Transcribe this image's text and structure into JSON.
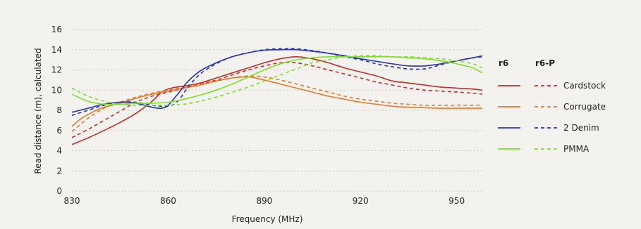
{
  "chart_data": {
    "type": "line",
    "xlabel": "Frequency (MHz)",
    "ylabel": "Read distance (m), calculated",
    "xlim": [
      830,
      958
    ],
    "ylim": [
      0,
      16
    ],
    "x_ticks": [
      830,
      860,
      890,
      920,
      950
    ],
    "y_ticks": [
      0,
      2,
      4,
      6,
      8,
      10,
      12,
      14,
      16
    ],
    "grid": "horizontal",
    "legend": {
      "placement": "right",
      "columns": [
        "r6",
        "r6-P"
      ],
      "styles": [
        "solid",
        "dashed"
      ]
    },
    "series": [
      {
        "name": "Cardstock",
        "color": "#c0302b",
        "r6": {
          "x": [
            830,
            833,
            836,
            840,
            845,
            850,
            855,
            858,
            861,
            865,
            870,
            875,
            880,
            885,
            890,
            895,
            900,
            905,
            910,
            915,
            920,
            925,
            930,
            935,
            940,
            945,
            950,
            955,
            958
          ],
          "y": [
            4.6,
            5.0,
            5.4,
            6.0,
            6.8,
            7.7,
            8.9,
            9.8,
            10.2,
            10.4,
            10.7,
            11.2,
            11.7,
            12.2,
            12.7,
            13.1,
            13.3,
            13.1,
            12.7,
            12.2,
            11.8,
            11.4,
            10.9,
            10.7,
            10.5,
            10.3,
            10.2,
            10.1,
            10.0
          ]
        },
        "r6-P": {
          "x": [
            830,
            835,
            840,
            845,
            850,
            855,
            860,
            865,
            870,
            875,
            880,
            885,
            890,
            895,
            900,
            905,
            910,
            915,
            920,
            925,
            930,
            935,
            940,
            945,
            950,
            955,
            958
          ],
          "y": [
            5.3,
            6.1,
            7.0,
            7.9,
            8.8,
            9.4,
            9.8,
            10.2,
            10.6,
            11.0,
            11.5,
            12.0,
            12.4,
            12.7,
            12.7,
            12.4,
            12.0,
            11.6,
            11.2,
            10.8,
            10.5,
            10.2,
            10.0,
            9.9,
            9.8,
            9.7,
            9.6
          ]
        }
      },
      {
        "name": "Corrugate",
        "color": "#e07b2d",
        "r6": {
          "x": [
            830,
            833,
            837,
            840,
            845,
            850,
            855,
            860,
            865,
            870,
            875,
            880,
            885,
            890,
            895,
            900,
            905,
            910,
            915,
            920,
            925,
            930,
            935,
            940,
            945,
            950,
            955,
            958
          ],
          "y": [
            6.4,
            7.2,
            7.9,
            8.3,
            8.7,
            9.2,
            9.6,
            9.9,
            10.2,
            10.5,
            10.9,
            11.2,
            11.3,
            11.0,
            10.6,
            10.2,
            9.8,
            9.4,
            9.1,
            8.8,
            8.6,
            8.4,
            8.3,
            8.25,
            8.2,
            8.2,
            8.2,
            8.2
          ]
        },
        "r6-P": {
          "x": [
            830,
            835,
            840,
            845,
            850,
            855,
            860,
            865,
            870,
            875,
            880,
            885,
            890,
            895,
            900,
            905,
            910,
            915,
            920,
            925,
            930,
            935,
            940,
            945,
            950,
            955,
            958
          ],
          "y": [
            5.9,
            7.2,
            8.2,
            8.8,
            9.3,
            9.7,
            10.0,
            10.3,
            10.6,
            10.9,
            11.2,
            11.4,
            11.3,
            11.0,
            10.6,
            10.2,
            9.8,
            9.4,
            9.1,
            8.9,
            8.7,
            8.6,
            8.5,
            8.5,
            8.5,
            8.5,
            8.5
          ]
        }
      },
      {
        "name": "2 Denim",
        "color": "#2634b0",
        "r6": {
          "x": [
            830,
            835,
            840,
            845,
            850,
            855,
            858,
            860,
            863,
            866,
            870,
            875,
            880,
            885,
            890,
            895,
            900,
            905,
            910,
            915,
            920,
            925,
            930,
            935,
            940,
            945,
            950,
            955,
            958
          ],
          "y": [
            7.8,
            8.2,
            8.6,
            8.8,
            8.7,
            8.3,
            8.2,
            8.5,
            9.6,
            10.8,
            11.9,
            12.7,
            13.3,
            13.7,
            13.95,
            14.0,
            14.0,
            13.85,
            13.65,
            13.4,
            13.1,
            12.85,
            12.6,
            12.4,
            12.4,
            12.6,
            12.9,
            13.2,
            13.4
          ]
        },
        "r6-P": {
          "x": [
            830,
            835,
            840,
            845,
            850,
            855,
            860,
            863,
            866,
            870,
            875,
            880,
            885,
            890,
            895,
            900,
            905,
            910,
            915,
            920,
            925,
            930,
            935,
            940,
            945,
            950,
            955,
            958
          ],
          "y": [
            7.5,
            8.0,
            8.5,
            8.8,
            8.8,
            8.5,
            8.4,
            8.9,
            10.2,
            11.6,
            12.6,
            13.3,
            13.7,
            14.0,
            14.1,
            14.1,
            13.9,
            13.65,
            13.3,
            13.0,
            12.6,
            12.3,
            12.1,
            12.1,
            12.5,
            12.9,
            13.2,
            13.3
          ]
        }
      },
      {
        "name": "PMMA",
        "color": "#7ee02a",
        "r6": {
          "x": [
            830,
            835,
            840,
            845,
            850,
            855,
            860,
            865,
            870,
            875,
            880,
            885,
            890,
            895,
            900,
            905,
            910,
            915,
            920,
            925,
            930,
            935,
            940,
            945,
            950,
            955,
            958
          ],
          "y": [
            9.6,
            8.9,
            8.6,
            8.6,
            8.7,
            8.7,
            8.8,
            9.1,
            9.5,
            10.0,
            10.6,
            11.3,
            12.0,
            12.6,
            13.0,
            13.2,
            13.3,
            13.3,
            13.3,
            13.3,
            13.3,
            13.2,
            13.1,
            12.9,
            12.6,
            12.2,
            11.7
          ]
        },
        "r6-P": {
          "x": [
            830,
            835,
            840,
            845,
            850,
            855,
            860,
            865,
            870,
            875,
            880,
            885,
            890,
            895,
            900,
            905,
            910,
            915,
            920,
            925,
            930,
            935,
            940,
            945,
            950,
            955,
            958
          ],
          "y": [
            10.2,
            9.4,
            8.9,
            8.6,
            8.5,
            8.5,
            8.5,
            8.6,
            8.9,
            9.3,
            9.8,
            10.3,
            10.9,
            11.5,
            12.1,
            12.7,
            13.0,
            13.3,
            13.4,
            13.4,
            13.3,
            13.3,
            13.2,
            13.1,
            12.9,
            12.6,
            12.2
          ]
        }
      }
    ]
  }
}
